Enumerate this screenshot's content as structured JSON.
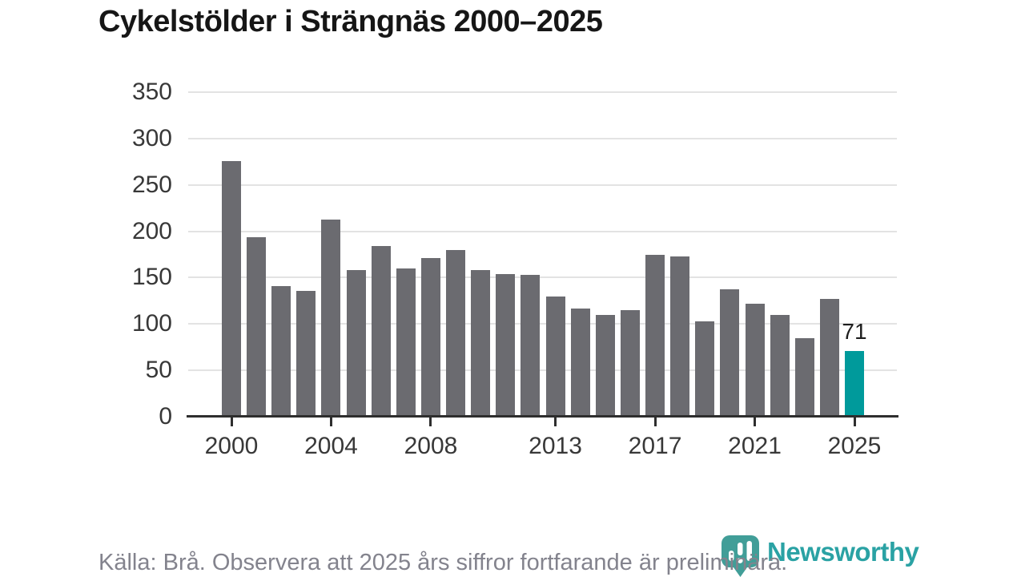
{
  "header": {
    "title": "Cykelstölder i Strängnäs 2000–2025"
  },
  "chart_data": {
    "type": "bar",
    "title": "Cykelstölder i Strängnäs 2000–2025",
    "x": [
      2000,
      2001,
      2002,
      2003,
      2004,
      2005,
      2006,
      2007,
      2008,
      2009,
      2010,
      2011,
      2012,
      2013,
      2014,
      2015,
      2016,
      2017,
      2018,
      2019,
      2020,
      2021,
      2022,
      2023,
      2024,
      2025
    ],
    "values": [
      276,
      194,
      141,
      136,
      213,
      158,
      184,
      160,
      171,
      180,
      158,
      154,
      153,
      130,
      117,
      110,
      115,
      175,
      173,
      103,
      137,
      122,
      110,
      85,
      127,
      71
    ],
    "highlight_index": 25,
    "highlight_label": "71",
    "ylim": [
      0,
      350
    ],
    "yticks": [
      0,
      50,
      100,
      150,
      200,
      250,
      300,
      350
    ],
    "xtick_labels": [
      "2000",
      "2004",
      "2008",
      "2013",
      "2017",
      "2021",
      "2025"
    ],
    "grid": "horizontal",
    "legend": "none",
    "colors": {
      "bar": "#6b6b70",
      "highlight": "#009a9b",
      "gridline": "#e3e3e3",
      "axis": "#2e2e2e",
      "tick_label": "#383838"
    }
  },
  "footer": {
    "source_note": "Källa: Brå. Observera att 2025 års siffror fortfarande är preliminära.",
    "logo_text": "Newsworthy"
  },
  "icons": {
    "logo_icon": "newsworthy-speech-bubble-bar-chart",
    "logo_icon_color": "#419e98"
  }
}
